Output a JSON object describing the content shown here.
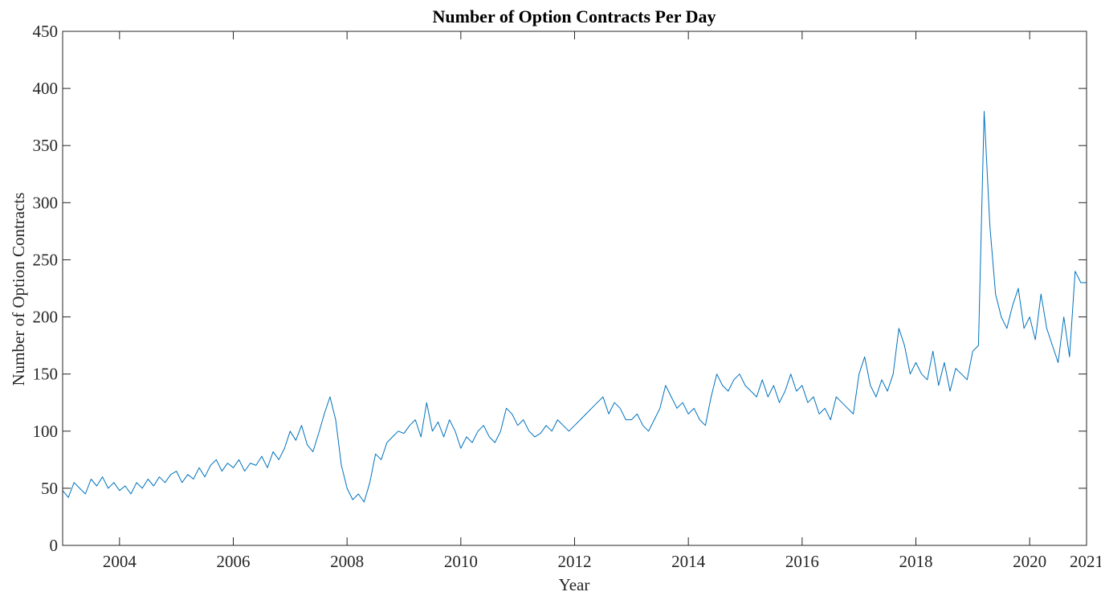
{
  "chart_data": {
    "type": "line",
    "title": "Number of Option Contracts Per Day",
    "xlabel": "Year",
    "ylabel": "Number of Option Contracts",
    "color": "#0072bd",
    "xlim": [
      2003,
      2021
    ],
    "xticks": [
      2004,
      2006,
      2008,
      2010,
      2012,
      2014,
      2016,
      2018,
      2020,
      2021
    ],
    "ylim": [
      0,
      450
    ],
    "yticks": [
      0,
      50,
      100,
      150,
      200,
      250,
      300,
      350,
      400,
      450
    ],
    "grid": false,
    "x": [
      2003.0,
      2003.1,
      2003.2,
      2003.3,
      2003.4,
      2003.5,
      2003.6,
      2003.7,
      2003.8,
      2003.9,
      2004.0,
      2004.1,
      2004.2,
      2004.3,
      2004.4,
      2004.5,
      2004.6,
      2004.7,
      2004.8,
      2004.9,
      2005.0,
      2005.1,
      2005.2,
      2005.3,
      2005.4,
      2005.5,
      2005.6,
      2005.7,
      2005.8,
      2005.9,
      2006.0,
      2006.1,
      2006.2,
      2006.3,
      2006.4,
      2006.5,
      2006.6,
      2006.7,
      2006.8,
      2006.9,
      2007.0,
      2007.1,
      2007.2,
      2007.3,
      2007.4,
      2007.5,
      2007.6,
      2007.7,
      2007.8,
      2007.9,
      2008.0,
      2008.1,
      2008.2,
      2008.3,
      2008.4,
      2008.5,
      2008.6,
      2008.7,
      2008.8,
      2008.9,
      2009.0,
      2009.1,
      2009.2,
      2009.3,
      2009.4,
      2009.5,
      2009.6,
      2009.7,
      2009.8,
      2009.9,
      2010.0,
      2010.1,
      2010.2,
      2010.3,
      2010.4,
      2010.5,
      2010.6,
      2010.7,
      2010.8,
      2010.9,
      2011.0,
      2011.1,
      2011.2,
      2011.3,
      2011.4,
      2011.5,
      2011.6,
      2011.7,
      2011.8,
      2011.9,
      2012.0,
      2012.1,
      2012.2,
      2012.3,
      2012.4,
      2012.5,
      2012.6,
      2012.7,
      2012.8,
      2012.9,
      2013.0,
      2013.1,
      2013.2,
      2013.3,
      2013.4,
      2013.5,
      2013.6,
      2013.7,
      2013.8,
      2013.9,
      2014.0,
      2014.1,
      2014.2,
      2014.3,
      2014.4,
      2014.5,
      2014.6,
      2014.7,
      2014.8,
      2014.9,
      2015.0,
      2015.1,
      2015.2,
      2015.3,
      2015.4,
      2015.5,
      2015.6,
      2015.7,
      2015.8,
      2015.9,
      2016.0,
      2016.1,
      2016.2,
      2016.3,
      2016.4,
      2016.5,
      2016.6,
      2016.7,
      2016.8,
      2016.9,
      2017.0,
      2017.1,
      2017.2,
      2017.3,
      2017.4,
      2017.5,
      2017.6,
      2017.7,
      2017.8,
      2017.9,
      2018.0,
      2018.1,
      2018.2,
      2018.3,
      2018.4,
      2018.5,
      2018.6,
      2018.7,
      2018.8,
      2018.9,
      2019.0,
      2019.1,
      2019.2,
      2019.3,
      2019.4,
      2019.5,
      2019.6,
      2019.7,
      2019.8,
      2019.9,
      2020.0,
      2020.1,
      2020.2,
      2020.3,
      2020.4,
      2020.5,
      2020.6,
      2020.7,
      2020.8,
      2020.9,
      2021.0
    ],
    "values": [
      48,
      42,
      55,
      50,
      45,
      58,
      52,
      60,
      50,
      55,
      48,
      52,
      45,
      55,
      50,
      58,
      52,
      60,
      55,
      62,
      65,
      55,
      62,
      58,
      68,
      60,
      70,
      75,
      65,
      72,
      68,
      75,
      65,
      72,
      70,
      78,
      68,
      82,
      75,
      85,
      100,
      92,
      105,
      88,
      82,
      98,
      115,
      130,
      110,
      70,
      50,
      40,
      45,
      38,
      55,
      80,
      75,
      90,
      95,
      100,
      98,
      105,
      110,
      95,
      125,
      100,
      108,
      95,
      110,
      100,
      85,
      95,
      90,
      100,
      105,
      95,
      90,
      100,
      120,
      115,
      105,
      110,
      100,
      95,
      98,
      105,
      100,
      110,
      105,
      100,
      105,
      110,
      115,
      120,
      125,
      130,
      115,
      125,
      120,
      110,
      110,
      115,
      105,
      100,
      110,
      120,
      140,
      130,
      120,
      125,
      115,
      120,
      110,
      105,
      130,
      150,
      140,
      135,
      145,
      150,
      140,
      135,
      130,
      145,
      130,
      140,
      125,
      135,
      150,
      135,
      140,
      125,
      130,
      115,
      120,
      110,
      130,
      125,
      120,
      115,
      150,
      165,
      140,
      130,
      145,
      135,
      150,
      190,
      175,
      150,
      160,
      150,
      145,
      170,
      140,
      160,
      135,
      155,
      150,
      145,
      170,
      175,
      380,
      280,
      220,
      200,
      190,
      210,
      225,
      190,
      200,
      180,
      220,
      190,
      175,
      160,
      200,
      165,
      240,
      230,
      230
    ]
  }
}
